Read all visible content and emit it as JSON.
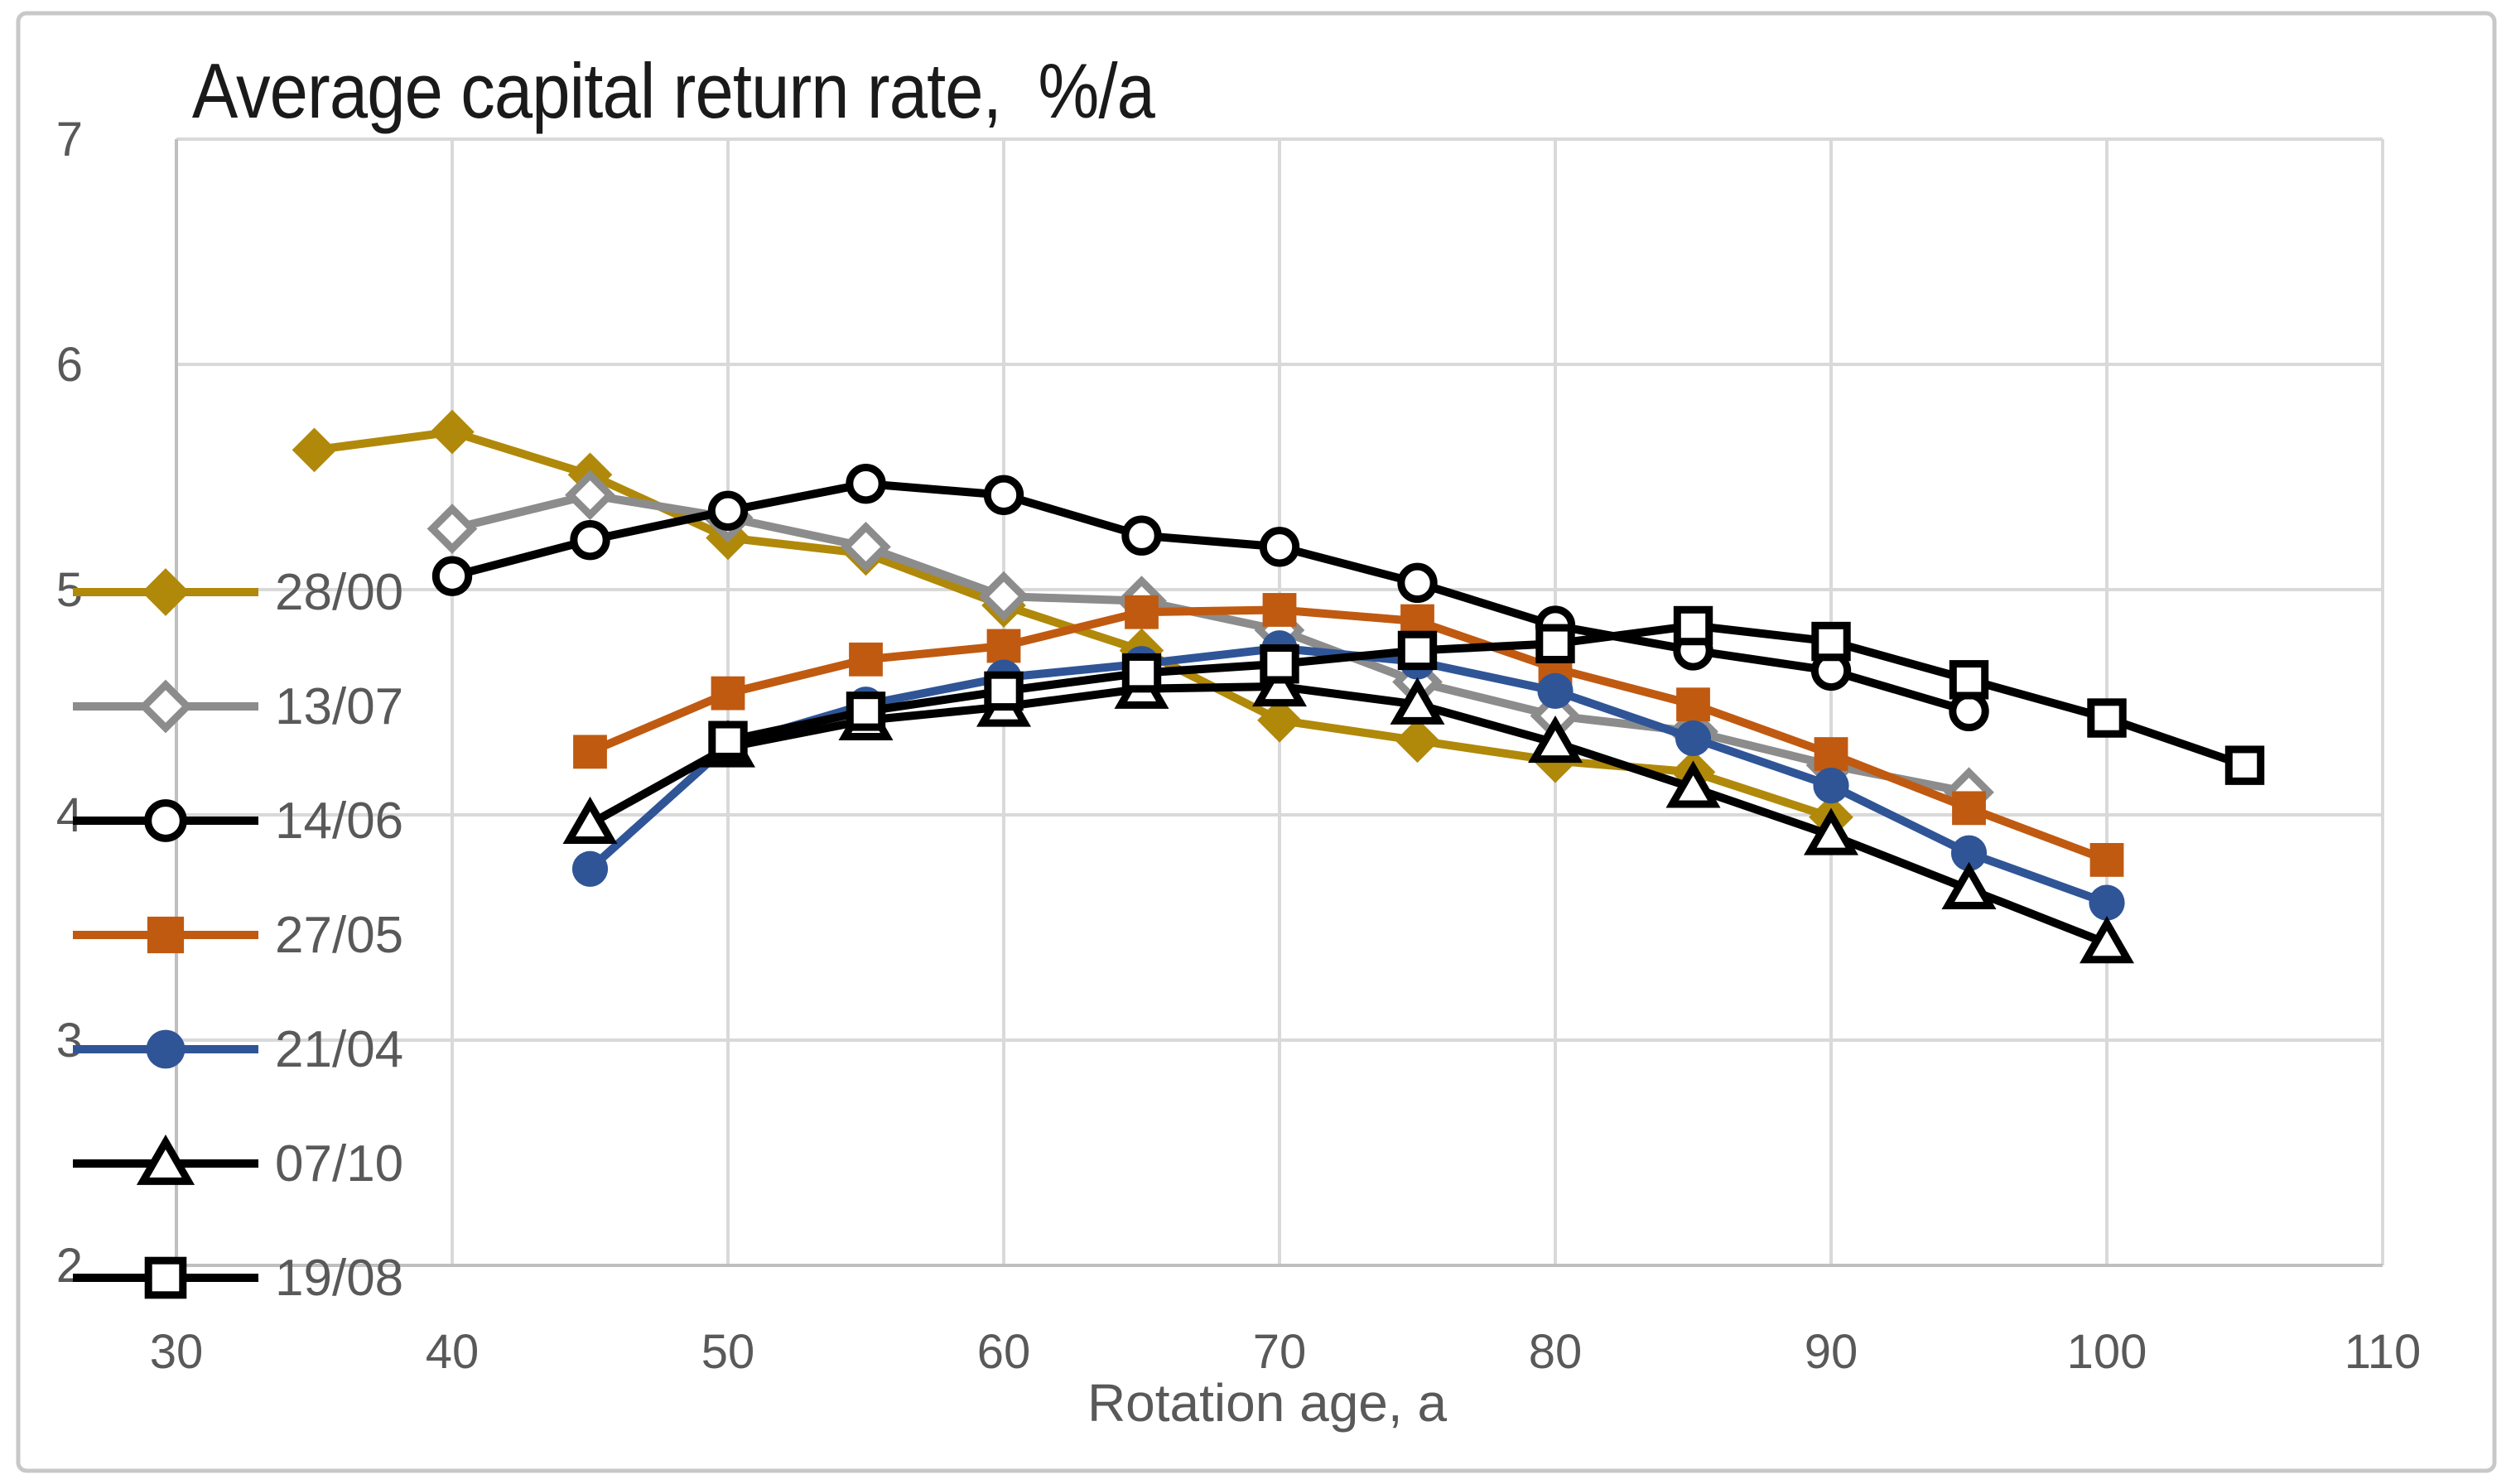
{
  "frame": {
    "border_color": "#C8C8C8",
    "background": "#FFFFFF"
  },
  "styles": {
    "grid_color": "#D9D9D9",
    "axis_line_color": "#BFBFBF",
    "tick_text_color": "#595959",
    "title_color": "#1A1A1A",
    "legend_text_color": "#595959"
  },
  "chart_data": {
    "type": "line",
    "title": "Average capital return rate,  %/a",
    "xlabel": "Rotation age, a",
    "ylabel": "",
    "xlim": [
      30,
      110
    ],
    "ylim": [
      2,
      7
    ],
    "x_ticks": [
      "30",
      "40",
      "50",
      "60",
      "70",
      "80",
      "90",
      "100",
      "110"
    ],
    "y_ticks": [
      "7",
      "6",
      "5",
      "4",
      "3",
      "2"
    ],
    "grid": true,
    "legend_position": "left-inside-overlay",
    "series": [
      {
        "name": "28/00",
        "color": "#B0890A",
        "marker": "diamond-filled",
        "points": [
          [
            35,
            5.62
          ],
          [
            40,
            5.7
          ],
          [
            45,
            5.51
          ],
          [
            50,
            5.23
          ],
          [
            55,
            5.16
          ],
          [
            60,
            4.93
          ],
          [
            65,
            4.73
          ],
          [
            70,
            4.42
          ],
          [
            75,
            4.33
          ],
          [
            80,
            4.24
          ],
          [
            85,
            4.19
          ],
          [
            90,
            3.99
          ]
        ]
      },
      {
        "name": "13/07",
        "color": "#8C8C8C",
        "marker": "diamond-open",
        "points": [
          [
            40,
            5.27
          ],
          [
            45,
            5.42
          ],
          [
            50,
            5.32
          ],
          [
            55,
            5.19
          ],
          [
            60,
            4.97
          ],
          [
            65,
            4.95
          ],
          [
            70,
            4.82
          ],
          [
            75,
            4.59
          ],
          [
            80,
            4.44
          ],
          [
            85,
            4.37
          ],
          [
            90,
            4.22
          ],
          [
            95,
            4.1
          ]
        ]
      },
      {
        "name": "14/06",
        "color": "#000000",
        "marker": "circle-open",
        "points": [
          [
            40,
            5.06
          ],
          [
            45,
            5.22
          ],
          [
            50,
            5.35
          ],
          [
            55,
            5.47
          ],
          [
            60,
            5.42
          ],
          [
            65,
            5.24
          ],
          [
            70,
            5.19
          ],
          [
            75,
            5.03
          ],
          [
            80,
            4.84
          ],
          [
            85,
            4.73
          ],
          [
            90,
            4.64
          ],
          [
            95,
            4.46
          ]
        ]
      },
      {
        "name": "27/05",
        "color": "#C05A11",
        "marker": "square-filled",
        "points": [
          [
            45,
            4.28
          ],
          [
            50,
            4.54
          ],
          [
            55,
            4.69
          ],
          [
            60,
            4.75
          ],
          [
            65,
            4.9
          ],
          [
            70,
            4.91
          ],
          [
            75,
            4.86
          ],
          [
            80,
            4.65
          ],
          [
            85,
            4.49
          ],
          [
            90,
            4.27
          ],
          [
            95,
            4.03
          ],
          [
            100,
            3.8
          ]
        ]
      },
      {
        "name": "21/04",
        "color": "#2F5597",
        "marker": "circle-filled",
        "points": [
          [
            45,
            3.76
          ],
          [
            50,
            4.31
          ],
          [
            55,
            4.49
          ],
          [
            60,
            4.61
          ],
          [
            65,
            4.67
          ],
          [
            70,
            4.74
          ],
          [
            75,
            4.68
          ],
          [
            80,
            4.55
          ],
          [
            85,
            4.34
          ],
          [
            90,
            4.13
          ],
          [
            95,
            3.83
          ],
          [
            100,
            3.61
          ]
        ]
      },
      {
        "name": "07/10",
        "color": "#000000",
        "marker": "triangle-open",
        "points": [
          [
            45,
            3.96
          ],
          [
            50,
            4.3
          ],
          [
            55,
            4.42
          ],
          [
            60,
            4.48
          ],
          [
            65,
            4.56
          ],
          [
            70,
            4.57
          ],
          [
            75,
            4.49
          ],
          [
            80,
            4.32
          ],
          [
            85,
            4.12
          ],
          [
            90,
            3.91
          ],
          [
            95,
            3.67
          ],
          [
            100,
            3.43
          ]
        ]
      },
      {
        "name": "19/08",
        "color": "#000000",
        "marker": "square-open",
        "points": [
          [
            50,
            4.33
          ],
          [
            55,
            4.46
          ],
          [
            60,
            4.55
          ],
          [
            65,
            4.63
          ],
          [
            70,
            4.67
          ],
          [
            75,
            4.73
          ],
          [
            80,
            4.76
          ],
          [
            85,
            4.84
          ],
          [
            90,
            4.77
          ],
          [
            95,
            4.6
          ],
          [
            100,
            4.43
          ],
          [
            105,
            4.22
          ]
        ]
      }
    ]
  }
}
